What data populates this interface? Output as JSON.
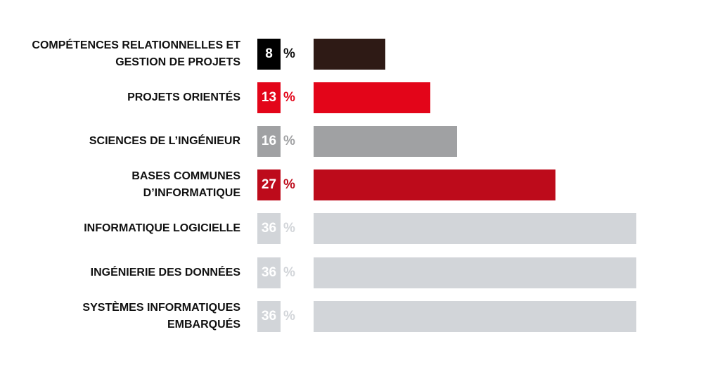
{
  "chart_data": {
    "type": "bar",
    "orientation": "horizontal",
    "categories": [
      [
        "COMPÉTENCES RELATIONNELLES ET",
        "GESTION DE PROJETS"
      ],
      [
        "PROJETS ORIENTÉS"
      ],
      [
        "SCIENCES DE L’INGÉNIEUR"
      ],
      [
        "BASES COMMUNES",
        "D’INFORMATIQUE"
      ],
      [
        "INFORMATIQUE LOGICIELLE"
      ],
      [
        "INGÉNIERIE DES DONNÉES"
      ],
      [
        "SYSTÈMES INFORMATIQUES",
        "EMBARQUÉS"
      ]
    ],
    "values": [
      8,
      13,
      16,
      27,
      36,
      36,
      36
    ],
    "value_labels": [
      "8",
      "13",
      "16",
      "27",
      "36",
      "36",
      "36"
    ],
    "unit": "%",
    "xlim": [
      0,
      36
    ],
    "grid": false,
    "colors": [
      "#2e1a15",
      "#e30519",
      "#a0a1a3",
      "#bd0b1b",
      "#d2d5d9",
      "#d2d5d9",
      "#d2d5d9"
    ],
    "label_colors": [
      "#000000",
      "#e30519",
      "#a0a1a3",
      "#bd0b1b",
      "#d2d5d9",
      "#d2d5d9",
      "#d2d5d9"
    ],
    "percent_colors": [
      "#111111",
      "#e30519",
      "#a0a1a3",
      "#bd0b1b",
      "#d2d5d9",
      "#d2d5d9",
      "#d2d5d9"
    ]
  }
}
